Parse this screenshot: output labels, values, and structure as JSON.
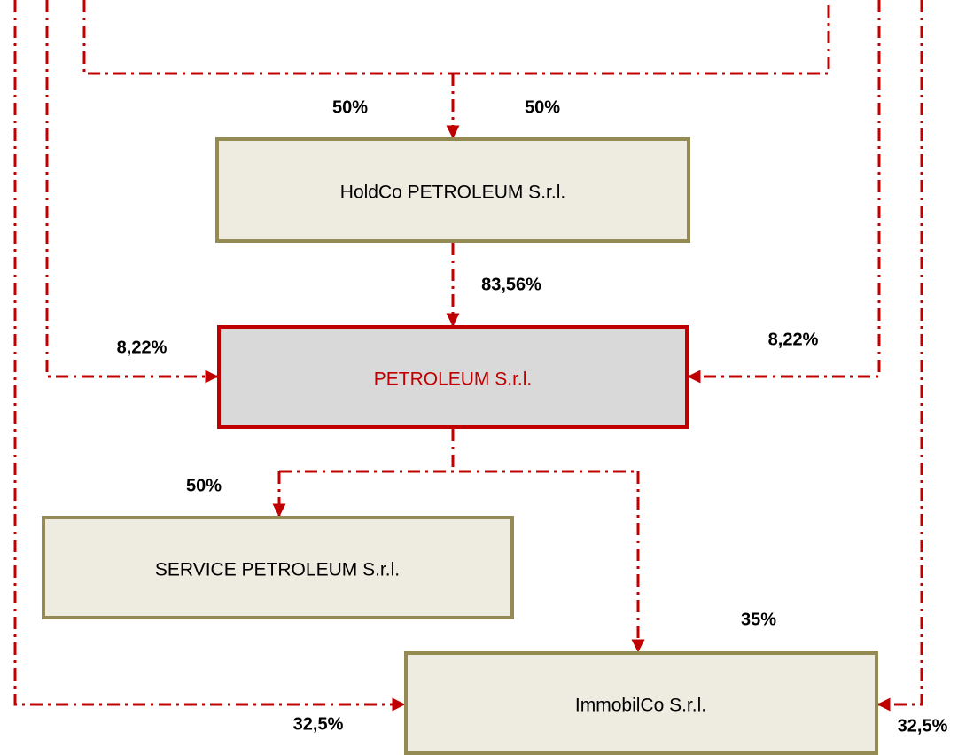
{
  "nodes": [
    {
      "label": "HoldCo PETROLEUM S.r.l."
    },
    {
      "label": "PETROLEUM S.r.l."
    },
    {
      "label": "SERVICE PETROLEUM S.r.l."
    },
    {
      "label": "ImmobilCo S.r.l."
    }
  ],
  "edges": [
    {
      "label": "50%"
    },
    {
      "label": "50%"
    },
    {
      "label": "83,56%"
    },
    {
      "label": "8,22%"
    },
    {
      "label": "8,22%"
    },
    {
      "label": "50%"
    },
    {
      "label": "35%"
    },
    {
      "label": "32,5%"
    },
    {
      "label": "32,5%"
    }
  ]
}
